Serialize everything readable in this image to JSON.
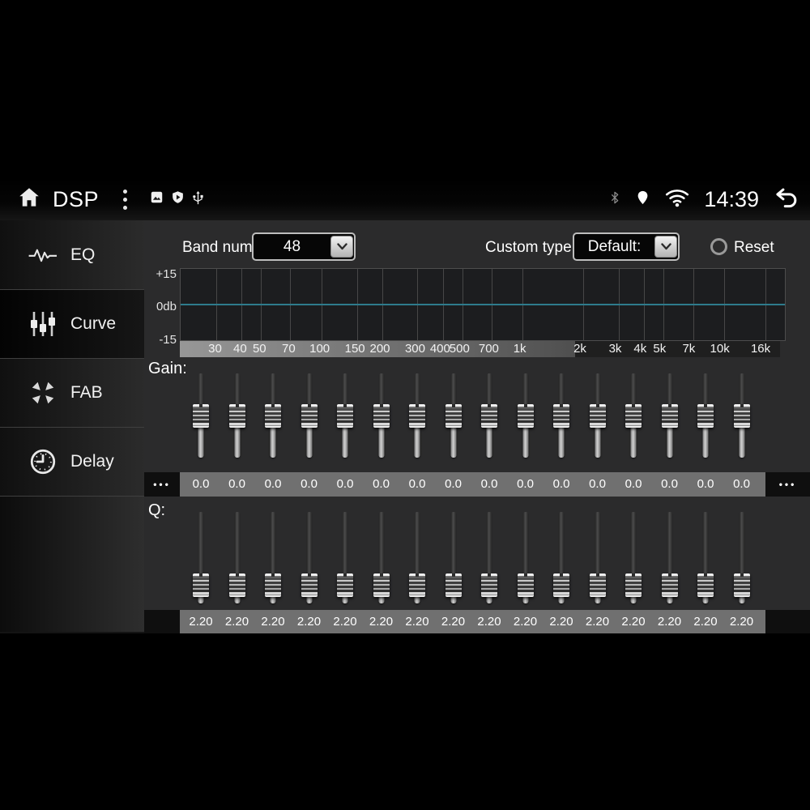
{
  "status_bar": {
    "title": "DSP",
    "time": "14:39",
    "left_icons": [
      "home-icon",
      "overflow-menu-icon",
      "photo-icon",
      "play-protect-shield-icon",
      "usb-icon"
    ],
    "right_icons": [
      "bluetooth-icon",
      "location-icon",
      "wifi-icon",
      "back-icon"
    ]
  },
  "sidebar": {
    "items": [
      {
        "label": "EQ",
        "icon": "waveform-icon",
        "active": false
      },
      {
        "label": "Curve",
        "icon": "mixer-sliders-icon",
        "active": true
      },
      {
        "label": "FAB",
        "icon": "fader-balance-icon",
        "active": false
      },
      {
        "label": "Delay",
        "icon": "clock-icon",
        "active": false
      }
    ]
  },
  "controls": {
    "band_num_label": "Band num:",
    "band_num_value": "48",
    "custom_type_label": "Custom type:",
    "custom_type_value": "Default:",
    "reset_label": "Reset"
  },
  "chart_data": {
    "type": "line",
    "title": "EQ frequency response curve (flat at 0 dB)",
    "x_scale": "log",
    "x_range_hz": [
      20,
      20000
    ],
    "x_ticks": [
      {
        "hz": 30,
        "label": "30"
      },
      {
        "hz": 40,
        "label": "40"
      },
      {
        "hz": 50,
        "label": "50"
      },
      {
        "hz": 70,
        "label": "70"
      },
      {
        "hz": 100,
        "label": "100"
      },
      {
        "hz": 150,
        "label": "150"
      },
      {
        "hz": 200,
        "label": "200"
      },
      {
        "hz": 300,
        "label": "300"
      },
      {
        "hz": 400,
        "label": "400"
      },
      {
        "hz": 500,
        "label": "500"
      },
      {
        "hz": 700,
        "label": "700"
      },
      {
        "hz": 1000,
        "label": "1k"
      },
      {
        "hz": 2000,
        "label": "2k"
      },
      {
        "hz": 3000,
        "label": "3k"
      },
      {
        "hz": 4000,
        "label": "4k"
      },
      {
        "hz": 5000,
        "label": "5k"
      },
      {
        "hz": 7000,
        "label": "7k"
      },
      {
        "hz": 10000,
        "label": "10k"
      },
      {
        "hz": 16000,
        "label": "16k"
      }
    ],
    "y_ticks": [
      "+15",
      "0db",
      "-15"
    ],
    "ylim": [
      -15,
      15
    ],
    "grid": true,
    "legend": "none",
    "line_color": "#2e7b8c",
    "series": [
      {
        "name": "eq-response",
        "x_hz": [
          20,
          20000
        ],
        "y_db": [
          0,
          0
        ]
      }
    ]
  },
  "gain": {
    "label": "Gain:",
    "values": [
      "0.0",
      "0.0",
      "0.0",
      "0.0",
      "0.0",
      "0.0",
      "0.0",
      "0.0",
      "0.0",
      "0.0",
      "0.0",
      "0.0",
      "0.0",
      "0.0",
      "0.0",
      "0.0"
    ],
    "scroll_left": "•••",
    "scroll_right": "•••"
  },
  "q": {
    "label": "Q:",
    "values": [
      "2.20",
      "2.20",
      "2.20",
      "2.20",
      "2.20",
      "2.20",
      "2.20",
      "2.20",
      "2.20",
      "2.20",
      "2.20",
      "2.20",
      "2.20",
      "2.20",
      "2.20",
      "2.20"
    ]
  }
}
